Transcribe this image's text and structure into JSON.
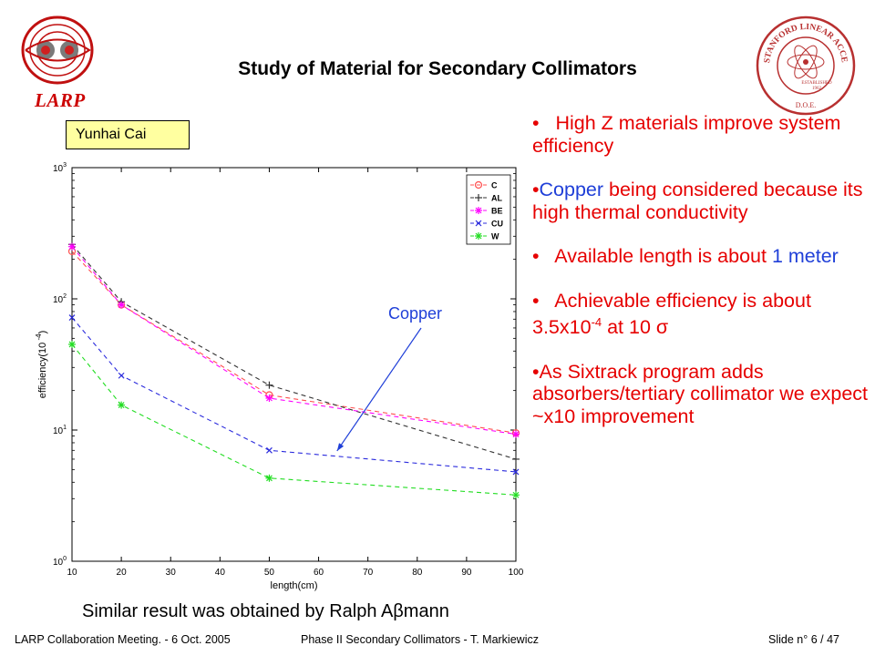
{
  "slide": {
    "title": "Study of Material for Secondary Collimators",
    "larp_label": "LARP",
    "author_box": "Yunhai Cai",
    "copper_annotation": "Copper",
    "similar_text_prefix": "Similar result was obtained by Ralph A",
    "similar_text_symbol": "β",
    "similar_text_suffix": "mann",
    "seal_text": "STANFORD LINEAR ACCELERATOR CENTER",
    "seal_bottom": "D.O.E.",
    "seal_established": "ESTABLISHED",
    "seal_year": "1962"
  },
  "bullets": [
    {
      "parts": [
        "•",
        "   High Z materials improve system efficiency"
      ]
    },
    {
      "parts": [
        "•",
        "Copper",
        " being considered because its high thermal conductivity"
      ]
    },
    {
      "parts": [
        "•",
        "   Available length is about ",
        "1 meter"
      ]
    },
    {
      "parts": [
        "•",
        "   Achievable efficiency is about 3.5x10",
        "-4",
        " at 10 ",
        "σ"
      ]
    },
    {
      "parts": [
        "•",
        "As Sixtrack program adds absorbers/tertiary collimator we expect ~x10 improvement"
      ]
    }
  ],
  "footer": {
    "left": "LARP Collaboration Meeting.  -  6 Oct. 2005",
    "center": "Phase II Secondary Collimators  -  T. Markiewicz",
    "right": "Slide n° 6 / 47"
  },
  "chart_data": {
    "type": "line",
    "xlabel": "length(cm)",
    "ylabel": "efficiency(10",
    "ylabel_sup": "-4",
    "ylabel_close": ")",
    "x": [
      10,
      20,
      50,
      100
    ],
    "xlim": [
      10,
      100
    ],
    "xticks": [
      "10",
      "20",
      "30",
      "40",
      "50",
      "60",
      "70",
      "80",
      "90",
      "100"
    ],
    "ylim": [
      1,
      1000
    ],
    "yscale": "log",
    "yticks": [
      {
        "base": "10",
        "exp": "0"
      },
      {
        "base": "10",
        "exp": "1"
      },
      {
        "base": "10",
        "exp": "2"
      },
      {
        "base": "10",
        "exp": "3"
      }
    ],
    "legend_position": "top-right",
    "series": [
      {
        "name": "C",
        "color": "#ff5050",
        "marker": "circle",
        "values": [
          230,
          90,
          18.5,
          9.5
        ]
      },
      {
        "name": "AL",
        "color": "#333333",
        "marker": "plus",
        "values": [
          260,
          95,
          22,
          6
        ]
      },
      {
        "name": "BE",
        "color": "#ff00ff",
        "marker": "star",
        "values": [
          250,
          90,
          17.5,
          9.3
        ]
      },
      {
        "name": "CU",
        "color": "#2b2bdd",
        "marker": "x",
        "values": [
          72,
          26,
          7,
          4.8
        ]
      },
      {
        "name": "W",
        "color": "#22dd22",
        "marker": "star",
        "values": [
          45,
          15.5,
          4.3,
          3.2
        ]
      }
    ]
  }
}
